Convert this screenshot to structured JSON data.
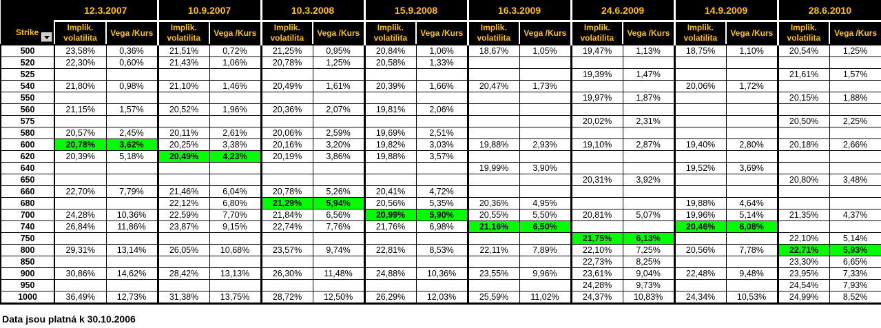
{
  "colors": {
    "header_bg": "#000000",
    "header_text": "#FFC000",
    "highlight_green": "#00FF00",
    "grid": "#000000",
    "filter_button_bg": "#D4D0C8"
  },
  "icons": {
    "filter_button": "dropdown-arrow-icon"
  },
  "header": {
    "strike_label": "Strike",
    "subheaders": {
      "implied_vol": "Implik. volatilita",
      "vega": "Vega /Kurs"
    },
    "dates": [
      "12.3.2007",
      "10.9.2007",
      "10.3.2008",
      "15.9.2008",
      "16.3.2009",
      "24.6.2009",
      "14.9.2009",
      "28.6.2010"
    ]
  },
  "footer_note": "Data jsou platná k 30.10.2006",
  "rows": [
    {
      "strike": "500",
      "cells": [
        {
          "iv": "23,58%",
          "vega": "0,36%"
        },
        {
          "iv": "21,51%",
          "vega": "0,72%"
        },
        {
          "iv": "21,25%",
          "vega": "0,95%"
        },
        {
          "iv": "20,84%",
          "vega": "1,06%"
        },
        {
          "iv": "18,67%",
          "vega": "1,05%"
        },
        {
          "iv": "19,47%",
          "vega": "1,13%"
        },
        {
          "iv": "18,75%",
          "vega": "1,10%"
        },
        {
          "iv": "20,54%",
          "vega": "1,25%"
        }
      ]
    },
    {
      "strike": "520",
      "cells": [
        {
          "iv": "22,30%",
          "vega": "0,60%"
        },
        {
          "iv": "21,43%",
          "vega": "1,06%"
        },
        {
          "iv": "20,78%",
          "vega": "1,25%"
        },
        {
          "iv": "20,58%",
          "vega": "1,33%"
        },
        null,
        null,
        null,
        null
      ]
    },
    {
      "strike": "525",
      "cells": [
        null,
        null,
        null,
        null,
        null,
        {
          "iv": "19,39%",
          "vega": "1,47%"
        },
        null,
        {
          "iv": "21,61%",
          "vega": "1,57%"
        }
      ]
    },
    {
      "strike": "540",
      "cells": [
        {
          "iv": "21,80%",
          "vega": "0,98%"
        },
        {
          "iv": "21,10%",
          "vega": "1,46%"
        },
        {
          "iv": "20,49%",
          "vega": "1,61%"
        },
        {
          "iv": "20,39%",
          "vega": "1,66%"
        },
        {
          "iv": "20,47%",
          "vega": "1,73%"
        },
        null,
        {
          "iv": "20,06%",
          "vega": "1,72%"
        },
        null
      ]
    },
    {
      "strike": "550",
      "cells": [
        null,
        null,
        null,
        null,
        null,
        {
          "iv": "19,97%",
          "vega": "1,87%"
        },
        null,
        {
          "iv": "20,15%",
          "vega": "1,88%"
        }
      ]
    },
    {
      "strike": "560",
      "cells": [
        {
          "iv": "21,15%",
          "vega": "1,57%"
        },
        {
          "iv": "20,52%",
          "vega": "1,96%"
        },
        {
          "iv": "20,36%",
          "vega": "2,07%"
        },
        {
          "iv": "19,81%",
          "vega": "2,06%"
        },
        null,
        null,
        null,
        null
      ]
    },
    {
      "strike": "575",
      "cells": [
        null,
        null,
        null,
        null,
        null,
        {
          "iv": "20,02%",
          "vega": "2,31%"
        },
        null,
        {
          "iv": "20,50%",
          "vega": "2,25%"
        }
      ]
    },
    {
      "strike": "580",
      "cells": [
        {
          "iv": "20,57%",
          "vega": "2,45%"
        },
        {
          "iv": "20,11%",
          "vega": "2,61%"
        },
        {
          "iv": "20,06%",
          "vega": "2,59%"
        },
        {
          "iv": "19,69%",
          "vega": "2,51%"
        },
        null,
        null,
        null,
        null
      ]
    },
    {
      "strike": "600",
      "cells": [
        {
          "iv": "20,78%",
          "vega": "3,62%",
          "hl": true
        },
        {
          "iv": "20,25%",
          "vega": "3,38%"
        },
        {
          "iv": "20,16%",
          "vega": "3,20%"
        },
        {
          "iv": "19,82%",
          "vega": "3,03%"
        },
        {
          "iv": "19,88%",
          "vega": "2,93%"
        },
        {
          "iv": "19,10%",
          "vega": "2,87%"
        },
        {
          "iv": "19,40%",
          "vega": "2,80%"
        },
        {
          "iv": "20,18%",
          "vega": "2,66%"
        }
      ]
    },
    {
      "strike": "620",
      "cells": [
        {
          "iv": "20,39%",
          "vega": "5,18%"
        },
        {
          "iv": "20,49%",
          "vega": "4,23%",
          "hl": true
        },
        {
          "iv": "20,19%",
          "vega": "3,86%"
        },
        {
          "iv": "19,88%",
          "vega": "3,57%"
        },
        null,
        null,
        null,
        null
      ]
    },
    {
      "strike": "640",
      "cells": [
        null,
        null,
        null,
        null,
        {
          "iv": "19,99%",
          "vega": "3,90%"
        },
        null,
        {
          "iv": "19,52%",
          "vega": "3,69%"
        },
        null
      ]
    },
    {
      "strike": "650",
      "cells": [
        null,
        null,
        null,
        null,
        null,
        {
          "iv": "20,31%",
          "vega": "3,92%"
        },
        null,
        {
          "iv": "20,80%",
          "vega": "3,48%"
        }
      ]
    },
    {
      "strike": "660",
      "cells": [
        {
          "iv": "22,70%",
          "vega": "7,79%"
        },
        {
          "iv": "21,46%",
          "vega": "6,04%"
        },
        {
          "iv": "20,78%",
          "vega": "5,26%"
        },
        {
          "iv": "20,41%",
          "vega": "4,72%"
        },
        null,
        null,
        null,
        null
      ]
    },
    {
      "strike": "680",
      "cells": [
        null,
        {
          "iv": "22,12%",
          "vega": "6,80%"
        },
        {
          "iv": "21,29%",
          "vega": "5,94%",
          "hl": true
        },
        {
          "iv": "20,56%",
          "vega": "5,35%"
        },
        {
          "iv": "20,36%",
          "vega": "4,95%"
        },
        null,
        {
          "iv": "19,88%",
          "vega": "4,64%"
        },
        null
      ]
    },
    {
      "strike": "700",
      "cells": [
        {
          "iv": "24,28%",
          "vega": "10,36%"
        },
        {
          "iv": "22,59%",
          "vega": "7,70%"
        },
        {
          "iv": "21,84%",
          "vega": "6,56%"
        },
        {
          "iv": "20,99%",
          "vega": "5,90%",
          "hl": true
        },
        {
          "iv": "20,55%",
          "vega": "5,50%"
        },
        {
          "iv": "20,81%",
          "vega": "5,07%"
        },
        {
          "iv": "19,96%",
          "vega": "5,14%"
        },
        {
          "iv": "21,35%",
          "vega": "4,37%"
        }
      ]
    },
    {
      "strike": "740",
      "cells": [
        {
          "iv": "26,84%",
          "vega": "11,86%"
        },
        {
          "iv": "23,87%",
          "vega": "9,15%"
        },
        {
          "iv": "22,74%",
          "vega": "7,76%"
        },
        {
          "iv": "21,76%",
          "vega": "6,98%"
        },
        {
          "iv": "21,16%",
          "vega": "6,50%",
          "hl": true
        },
        null,
        {
          "iv": "20,46%",
          "vega": "6,08%",
          "hl": true
        },
        null
      ]
    },
    {
      "strike": "750",
      "cells": [
        null,
        null,
        null,
        null,
        null,
        {
          "iv": "21,75%",
          "vega": "6,13%",
          "hl": true
        },
        null,
        {
          "iv": "22,10%",
          "vega": "5,14%"
        }
      ]
    },
    {
      "strike": "800",
      "cells": [
        {
          "iv": "29,31%",
          "vega": "13,14%"
        },
        {
          "iv": "26,05%",
          "vega": "10,68%"
        },
        {
          "iv": "23,57%",
          "vega": "9,74%"
        },
        {
          "iv": "22,81%",
          "vega": "8,53%"
        },
        {
          "iv": "22,11%",
          "vega": "7,89%"
        },
        {
          "iv": "22,10%",
          "vega": "7,25%"
        },
        {
          "iv": "20,56%",
          "vega": "7,78%"
        },
        {
          "iv": "22,71%",
          "vega": "5,93%",
          "hl": true
        }
      ]
    },
    {
      "strike": "850",
      "cells": [
        null,
        null,
        null,
        null,
        null,
        {
          "iv": "22,73%",
          "vega": "8,25%"
        },
        null,
        {
          "iv": "23,30%",
          "vega": "6,65%"
        }
      ]
    },
    {
      "strike": "900",
      "cells": [
        {
          "iv": "30,86%",
          "vega": "14,62%"
        },
        {
          "iv": "28,42%",
          "vega": "13,13%"
        },
        {
          "iv": "26,30%",
          "vega": "11,48%"
        },
        {
          "iv": "24,88%",
          "vega": "10,36%"
        },
        {
          "iv": "23,55%",
          "vega": "9,96%"
        },
        {
          "iv": "23,61%",
          "vega": "9,04%"
        },
        {
          "iv": "22,48%",
          "vega": "9,48%"
        },
        {
          "iv": "23,95%",
          "vega": "7,33%"
        }
      ]
    },
    {
      "strike": "950",
      "cells": [
        null,
        null,
        null,
        null,
        null,
        {
          "iv": "24,28%",
          "vega": "9,73%"
        },
        null,
        {
          "iv": "24,54%",
          "vega": "7,93%"
        }
      ]
    },
    {
      "strike": "1000",
      "cells": [
        {
          "iv": "36,49%",
          "vega": "12,73%"
        },
        {
          "iv": "31,38%",
          "vega": "13,75%"
        },
        {
          "iv": "28,72%",
          "vega": "12,50%"
        },
        {
          "iv": "26,29%",
          "vega": "12,03%"
        },
        {
          "iv": "25,59%",
          "vega": "11,02%"
        },
        {
          "iv": "24,37%",
          "vega": "10,83%"
        },
        {
          "iv": "24,34%",
          "vega": "10,53%"
        },
        {
          "iv": "24,99%",
          "vega": "8,52%"
        }
      ]
    }
  ]
}
